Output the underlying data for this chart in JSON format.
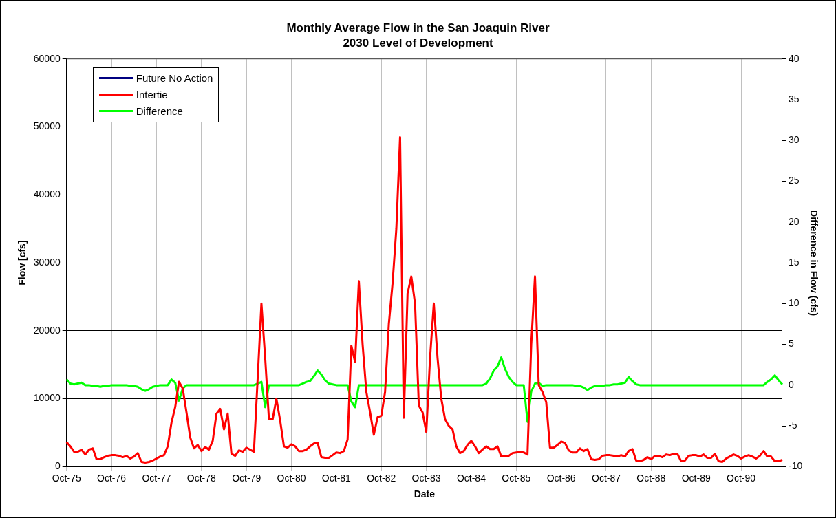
{
  "chart_data": {
    "type": "line",
    "title": "Monthly Average Flow in the San Joaquin River",
    "subtitle": "2030 Level of Development",
    "xlabel": "Date",
    "ylabel": "Flow [cfs]",
    "y2label": "Difference in Flow (cfs)",
    "categories": [
      "Oct-75",
      null,
      null,
      null,
      null,
      null,
      null,
      null,
      null,
      null,
      null,
      null,
      "Oct-76",
      null,
      null,
      null,
      null,
      null,
      null,
      null,
      null,
      null,
      null,
      null,
      "Oct-77",
      null,
      null,
      null,
      null,
      null,
      null,
      null,
      null,
      null,
      null,
      null,
      "Oct-78",
      null,
      null,
      null,
      null,
      null,
      null,
      null,
      null,
      null,
      null,
      null,
      "Oct-79",
      null,
      null,
      null,
      null,
      null,
      null,
      null,
      null,
      null,
      null,
      null,
      "Oct-80",
      null,
      null,
      null,
      null,
      null,
      null,
      null,
      null,
      null,
      null,
      null,
      "Oct-81",
      null,
      null,
      null,
      null,
      null,
      null,
      null,
      null,
      null,
      null,
      null,
      "Oct-82",
      null,
      null,
      null,
      null,
      null,
      null,
      null,
      null,
      null,
      null,
      null,
      "Oct-83",
      null,
      null,
      null,
      null,
      null,
      null,
      null,
      null,
      null,
      null,
      null,
      "Oct-84",
      null,
      null,
      null,
      null,
      null,
      null,
      null,
      null,
      null,
      null,
      null,
      "Oct-85",
      null,
      null,
      null,
      null,
      null,
      null,
      null,
      null,
      null,
      null,
      null,
      "Oct-86",
      null,
      null,
      null,
      null,
      null,
      null,
      null,
      null,
      null,
      null,
      null,
      "Oct-87",
      null,
      null,
      null,
      null,
      null,
      null,
      null,
      null,
      null,
      null,
      null,
      "Oct-88",
      null,
      null,
      null,
      null,
      null,
      null,
      null,
      null,
      null,
      null,
      null,
      "Oct-89",
      null,
      null,
      null,
      null,
      null,
      null,
      null,
      null,
      null,
      null,
      null,
      "Oct-90",
      null,
      null,
      null,
      null,
      null,
      null,
      null,
      null,
      null,
      null,
      null
    ],
    "series": [
      {
        "name": "Future No Action",
        "color": "#000080",
        "values": [
          null,
          null,
          null,
          null,
          null,
          null,
          null,
          null,
          null,
          null,
          null,
          null,
          null,
          null,
          null,
          null,
          null,
          null,
          null,
          null,
          null,
          null,
          null,
          null,
          null,
          null,
          null,
          null,
          null,
          null,
          null,
          null,
          null,
          null,
          null,
          null,
          null,
          null,
          null,
          null,
          null,
          null,
          null,
          null,
          null,
          null,
          null,
          null,
          null,
          null,
          null,
          null,
          null,
          null,
          null,
          null,
          null,
          null,
          null,
          null,
          null,
          null,
          null,
          null,
          null,
          null,
          null,
          null,
          null,
          null,
          null,
          null,
          null,
          null,
          null,
          null,
          null,
          null,
          null,
          null,
          null,
          null,
          null,
          null,
          null,
          null,
          null,
          null,
          null,
          null,
          null,
          null,
          null,
          null,
          null,
          null,
          null,
          null,
          null,
          null,
          null,
          null,
          null,
          null,
          null,
          null,
          null,
          null,
          null,
          null,
          null,
          null,
          null,
          null,
          null,
          null,
          null,
          null,
          null,
          null,
          null,
          null,
          null,
          null,
          null,
          null,
          null,
          null,
          null,
          null,
          null,
          null,
          null,
          null,
          null,
          null,
          null,
          null,
          null,
          null,
          null,
          null,
          null,
          null,
          null,
          null,
          null,
          null,
          null,
          null,
          null,
          null,
          null,
          null,
          null,
          null,
          null,
          null,
          null,
          null,
          null,
          null,
          null,
          null,
          null,
          null,
          null,
          null,
          null,
          null,
          null,
          null,
          null,
          null,
          null,
          null,
          null,
          null,
          null,
          null,
          null,
          null,
          null,
          null,
          null,
          null,
          null,
          null,
          null,
          null,
          null,
          null
        ]
      },
      {
        "name": "Intertie",
        "color": "#ff0000",
        "values": [
          3600,
          3000,
          2200,
          2200,
          2500,
          1800,
          2500,
          2700,
          1100,
          1100,
          1400,
          1600,
          1700,
          1700,
          1600,
          1400,
          1600,
          1200,
          1500,
          2000,
          700,
          600,
          700,
          900,
          1200,
          1500,
          1700,
          3000,
          6500,
          8800,
          12500,
          11500,
          8000,
          4300,
          2700,
          3200,
          2300,
          2900,
          2500,
          3800,
          7800,
          8500,
          5500,
          7800,
          1900,
          1600,
          2400,
          2200,
          2800,
          2500,
          2200,
          13000,
          24000,
          16000,
          7000,
          7000,
          10000,
          6800,
          3000,
          2800,
          3300,
          3000,
          2300,
          2300,
          2500,
          3000,
          3400,
          3500,
          1400,
          1300,
          1300,
          1700,
          2100,
          2000,
          2300,
          4000,
          17800,
          15400,
          27300,
          18000,
          11000,
          8000,
          4700,
          7300,
          7500,
          11000,
          21000,
          27000,
          35000,
          48500,
          7200,
          25500,
          28000,
          24000,
          9000,
          8000,
          5100,
          16000,
          24000,
          16000,
          10000,
          7000,
          6000,
          5500,
          3000,
          2000,
          2300,
          3200,
          3800,
          3000,
          2000,
          2500,
          3000,
          2600,
          2600,
          3000,
          1500,
          1500,
          1600,
          2000,
          2100,
          2200,
          2100,
          1800,
          18000,
          28000,
          12000,
          11000,
          9500,
          2800,
          2800,
          3200,
          3700,
          3500,
          2400,
          2100,
          2100,
          2700,
          2300,
          2600,
          1100,
          1000,
          1100,
          1600,
          1700,
          1700,
          1600,
          1500,
          1700,
          1500,
          2300,
          2600,
          900,
          800,
          1000,
          1400,
          1100,
          1600,
          1600,
          1400,
          1800,
          1700,
          1900,
          1900,
          800,
          900,
          1600,
          1700,
          1700,
          1500,
          1800,
          1300,
          1300,
          1900,
          800,
          700,
          1200,
          1500,
          1800,
          1600,
          1200,
          1500,
          1700,
          1500,
          1200,
          1600,
          2300,
          1500,
          1500,
          800,
          800,
          1000
        ]
      },
      {
        "name": "Difference",
        "color": "#00ff00",
        "axis": "y2",
        "values": [
          0.7,
          0.2,
          0.1,
          0.2,
          0.3,
          0,
          0,
          -0.1,
          -0.1,
          -0.2,
          -0.1,
          -0.1,
          0,
          0,
          0,
          0,
          0,
          -0.1,
          -0.1,
          -0.2,
          -0.5,
          -0.7,
          -0.5,
          -0.2,
          -0.1,
          0,
          0,
          0,
          0.7,
          0.3,
          -1.9,
          -0.4,
          0,
          0,
          0,
          0,
          0,
          0,
          0,
          0,
          0,
          0,
          0,
          0,
          0,
          0,
          0,
          0,
          0,
          0,
          0,
          0.2,
          0.4,
          -2.7,
          0,
          0,
          0,
          0,
          0,
          0,
          0,
          0,
          0,
          0.2,
          0.4,
          0.5,
          1.1,
          1.8,
          1.3,
          0.6,
          0.2,
          0.1,
          0,
          0,
          0,
          0,
          -2,
          -2.7,
          0,
          0,
          0,
          0,
          0,
          0,
          0,
          0,
          0,
          0,
          0,
          0,
          0,
          0,
          0,
          0,
          0,
          0,
          0,
          0,
          0,
          0,
          0,
          0,
          0,
          0,
          0,
          0,
          0,
          0,
          0,
          0,
          0,
          0,
          0.2,
          0.8,
          1.8,
          2.3,
          3.4,
          2,
          1,
          0.4,
          0,
          0,
          0,
          -4.5,
          -0.8,
          0.2,
          0.3,
          -0.1,
          0,
          0,
          0,
          0,
          0,
          0,
          0,
          0,
          -0.1,
          -0.1,
          -0.3,
          -0.6,
          -0.3,
          -0.1,
          -0.1,
          -0.1,
          0,
          0,
          0.1,
          0.1,
          0.2,
          0.3,
          1,
          0.5,
          0.1,
          0,
          0,
          0,
          0,
          0,
          0,
          0,
          0,
          0,
          0,
          0,
          0,
          0,
          0,
          0,
          0,
          0,
          0,
          0,
          0,
          0,
          0,
          0,
          0,
          0,
          0,
          0,
          0,
          0,
          0,
          0,
          0,
          0,
          0,
          0.4,
          0.7,
          1.2,
          0.6,
          0.1
        ]
      }
    ],
    "ylim": [
      0,
      60000
    ],
    "yticks": [
      0,
      10000,
      20000,
      30000,
      40000,
      50000,
      60000
    ],
    "y2lim": [
      -10,
      40
    ],
    "y2ticks": [
      -10,
      -5,
      0,
      5,
      10,
      15,
      20,
      25,
      30,
      35,
      40
    ],
    "grid": true,
    "legend": "top left",
    "marker": "none",
    "line_style": "solid"
  }
}
